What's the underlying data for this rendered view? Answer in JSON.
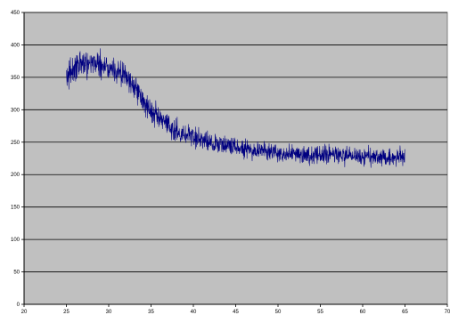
{
  "chart_data": {
    "type": "line",
    "title": "",
    "xlabel": "",
    "ylabel": "",
    "xlim": [
      20,
      70
    ],
    "ylim": [
      0,
      450
    ],
    "x_ticks": [
      "20",
      "25",
      "30",
      "35",
      "40",
      "45",
      "50",
      "55",
      "60",
      "65",
      "70"
    ],
    "y_ticks": [
      "0",
      "50",
      "100",
      "150",
      "200",
      "250",
      "300",
      "350",
      "400",
      "450"
    ],
    "grid": "horizontal",
    "legend": "none",
    "colors": {
      "plot_background": "#c0c0c0",
      "series": "#000080",
      "gridline": "#000000"
    },
    "series": [
      {
        "x_start": 25,
        "x_end": 65,
        "x": [
          25,
          26,
          27,
          28,
          29,
          30,
          31,
          32,
          33,
          34,
          35,
          36,
          37,
          38,
          39,
          40,
          41,
          42,
          43,
          44,
          45,
          46,
          47,
          48,
          49,
          50,
          51,
          52,
          53,
          54,
          55,
          56,
          57,
          58,
          59,
          60,
          61,
          62,
          63,
          64,
          65
        ],
        "y": [
          350,
          365,
          372,
          375,
          370,
          365,
          360,
          350,
          338,
          315,
          298,
          285,
          275,
          268,
          262,
          258,
          254,
          250,
          247,
          245,
          243,
          241,
          239,
          237,
          235,
          234,
          233,
          232,
          232,
          231,
          231,
          230,
          230,
          229,
          229,
          228,
          228,
          227,
          227,
          226,
          226
        ],
        "noise_amplitude": [
          30,
          32,
          32,
          32,
          32,
          32,
          30,
          30,
          30,
          28,
          28,
          25,
          25,
          25,
          25,
          25,
          25,
          22,
          22,
          22,
          22,
          22,
          22,
          20,
          20,
          20,
          20,
          20,
          20,
          20,
          20,
          20,
          20,
          20,
          20,
          20,
          20,
          20,
          20,
          20,
          20
        ]
      }
    ]
  }
}
